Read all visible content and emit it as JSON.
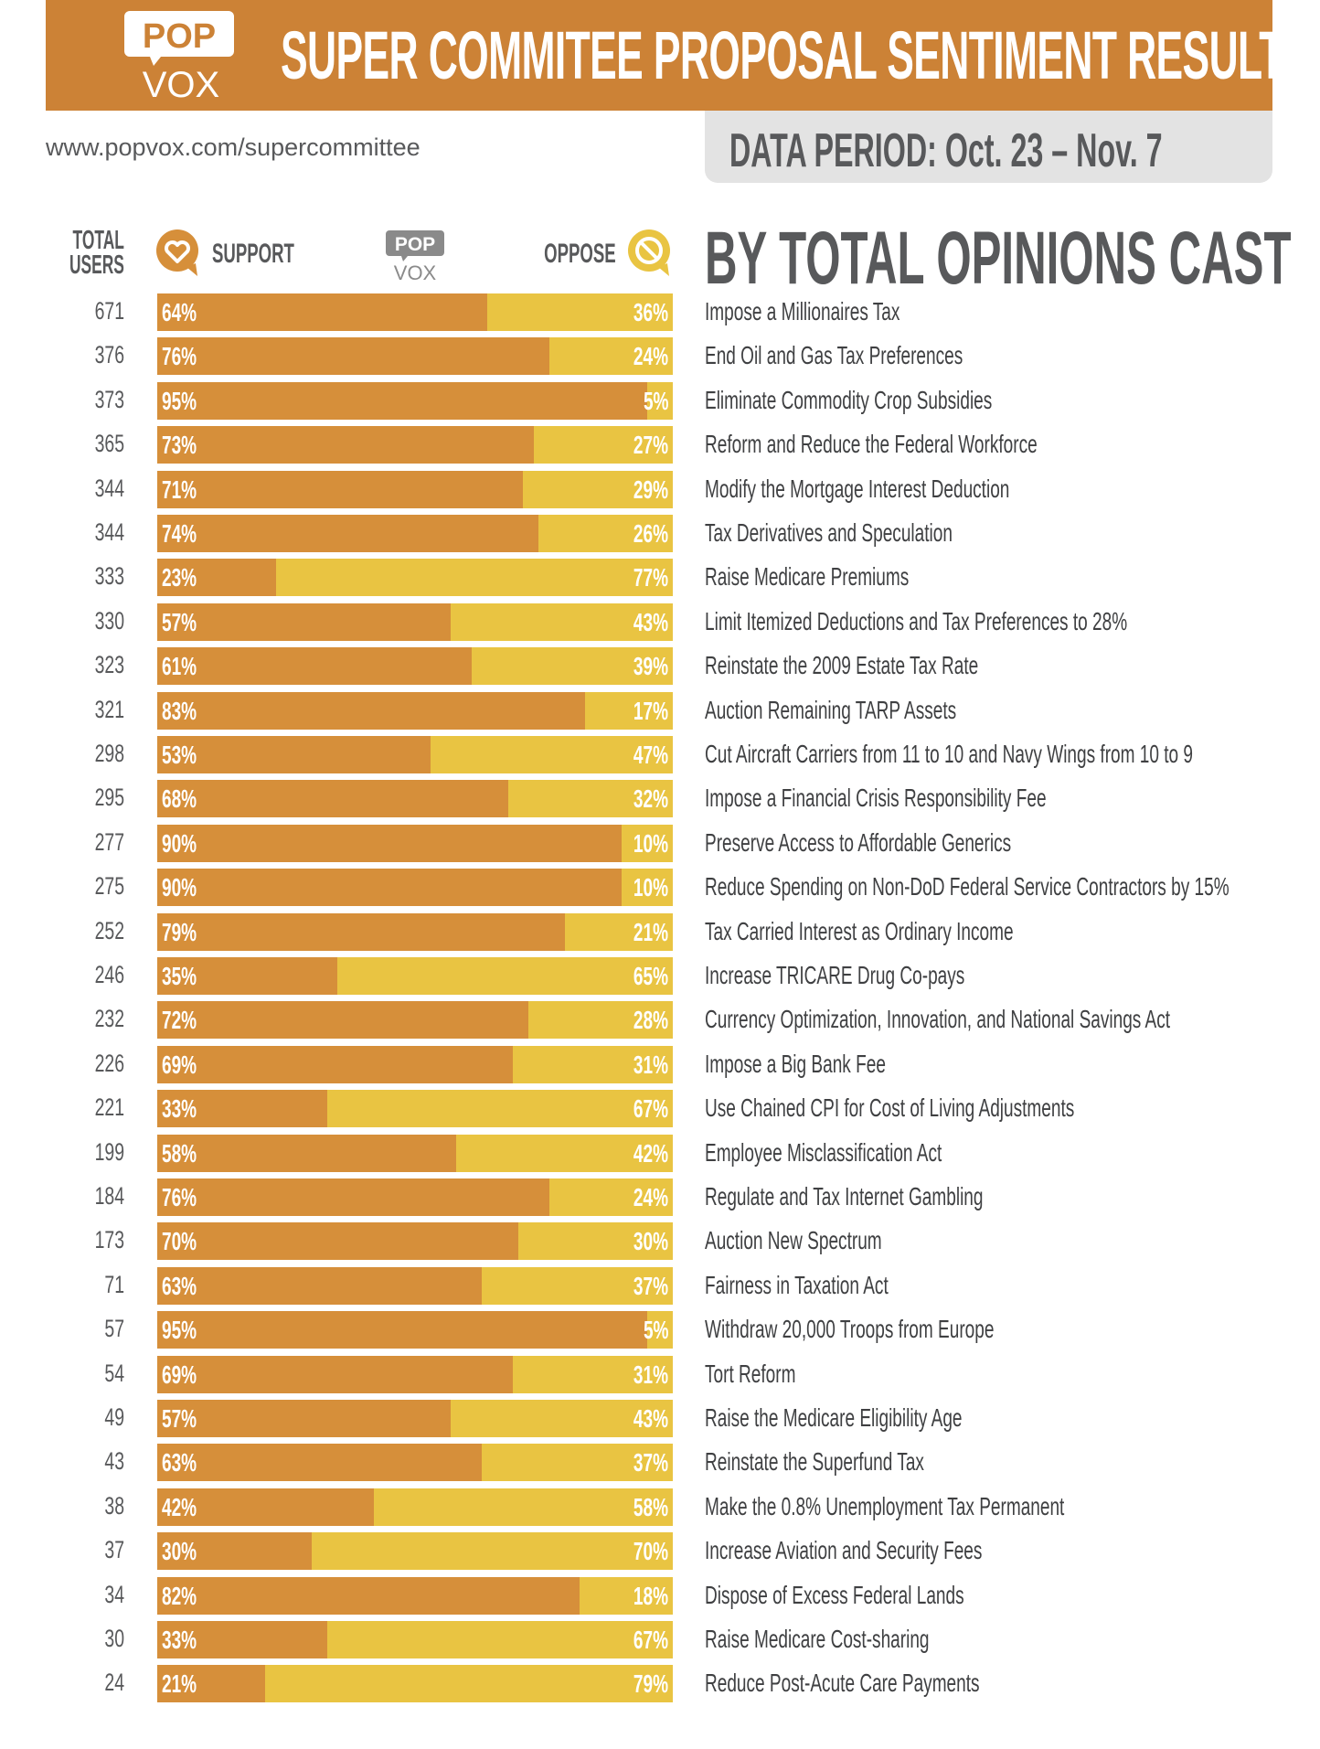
{
  "header": {
    "logo_top": "POP",
    "logo_bottom": "VOX",
    "title": "SUPER COMMITEE PROPOSAL SENTIMENT RESULTS",
    "url": "www.popvox.com/supercommittee",
    "data_period": "DATA PERIOD: Oct. 23 – Nov. 7"
  },
  "colors": {
    "banner": "#cc8236",
    "support": "#d68f3a",
    "oppose": "#e9c442"
  },
  "legend": {
    "total_users_line1": "TOTAL",
    "total_users_line2": "USERS",
    "support": "SUPPORT",
    "oppose": "OPPOSE",
    "support_icon": "heart-bubble-icon",
    "oppose_icon": "prohibited-bubble-icon"
  },
  "chart_data": {
    "type": "bar",
    "stacked": true,
    "orientation": "horizontal",
    "title": "BY TOTAL OPINIONS CAST",
    "series_names": [
      "SUPPORT",
      "OPPOSE"
    ],
    "rows": [
      {
        "users": "671",
        "support": "64%",
        "oppose": "36%",
        "s": 64,
        "label": "Impose a Millionaires Tax"
      },
      {
        "users": "376",
        "support": "76%",
        "oppose": "24%",
        "s": 76,
        "label": "End Oil and Gas Tax Preferences"
      },
      {
        "users": "373",
        "support": "95%",
        "oppose": "5%",
        "s": 95,
        "label": "Eliminate Commodity Crop Subsidies"
      },
      {
        "users": "365",
        "support": "73%",
        "oppose": "27%",
        "s": 73,
        "label": "Reform and Reduce the Federal Workforce"
      },
      {
        "users": "344",
        "support": "71%",
        "oppose": "29%",
        "s": 71,
        "label": "Modify the Mortgage Interest Deduction"
      },
      {
        "users": "344",
        "support": "74%",
        "oppose": "26%",
        "s": 74,
        "label": "Tax Derivatives and Speculation"
      },
      {
        "users": "333",
        "support": "23%",
        "oppose": "77%",
        "s": 23,
        "label": "Raise Medicare Premiums"
      },
      {
        "users": "330",
        "support": "57%",
        "oppose": "43%",
        "s": 57,
        "label": "Limit Itemized Deductions and Tax Preferences to 28%"
      },
      {
        "users": "323",
        "support": "61%",
        "oppose": "39%",
        "s": 61,
        "label": "Reinstate the 2009 Estate Tax Rate"
      },
      {
        "users": "321",
        "support": "83%",
        "oppose": "17%",
        "s": 83,
        "label": "Auction Remaining TARP Assets"
      },
      {
        "users": "298",
        "support": "53%",
        "oppose": "47%",
        "s": 53,
        "label": "Cut Aircraft Carriers from 11 to 10 and Navy Wings from 10 to 9"
      },
      {
        "users": "295",
        "support": "68%",
        "oppose": "32%",
        "s": 68,
        "label": "Impose a Financial Crisis Responsibility Fee"
      },
      {
        "users": "277",
        "support": "90%",
        "oppose": "10%",
        "s": 90,
        "label": "Preserve Access to Affordable Generics"
      },
      {
        "users": "275",
        "support": "90%",
        "oppose": "10%",
        "s": 90,
        "label": "Reduce Spending on Non-DoD Federal Service Contractors by 15%"
      },
      {
        "users": "252",
        "support": "79%",
        "oppose": "21%",
        "s": 79,
        "label": "Tax Carried Interest as Ordinary Income"
      },
      {
        "users": "246",
        "support": "35%",
        "oppose": "65%",
        "s": 35,
        "label": "Increase TRICARE Drug Co-pays"
      },
      {
        "users": "232",
        "support": "72%",
        "oppose": "28%",
        "s": 72,
        "label": "Currency Optimization, Innovation, and National Savings Act"
      },
      {
        "users": "226",
        "support": "69%",
        "oppose": "31%",
        "s": 69,
        "label": "Impose a Big Bank Fee"
      },
      {
        "users": "221",
        "support": "33%",
        "oppose": "67%",
        "s": 33,
        "label": "Use Chained CPI for Cost of Living Adjustments"
      },
      {
        "users": "199",
        "support": "58%",
        "oppose": "42%",
        "s": 58,
        "label": "Employee Misclassification Act"
      },
      {
        "users": "184",
        "support": "76%",
        "oppose": "24%",
        "s": 76,
        "label": "Regulate and Tax Internet Gambling"
      },
      {
        "users": "173",
        "support": "70%",
        "oppose": "30%",
        "s": 70,
        "label": "Auction New Spectrum"
      },
      {
        "users": "71",
        "support": "63%",
        "oppose": "37%",
        "s": 63,
        "label": "Fairness in Taxation Act"
      },
      {
        "users": "57",
        "support": "95%",
        "oppose": "5%",
        "s": 95,
        "label": "Withdraw 20,000 Troops from Europe"
      },
      {
        "users": "54",
        "support": "69%",
        "oppose": "31%",
        "s": 69,
        "label": "Tort Reform"
      },
      {
        "users": "49",
        "support": "57%",
        "oppose": "43%",
        "s": 57,
        "label": "Raise the Medicare Eligibility Age"
      },
      {
        "users": "43",
        "support": "63%",
        "oppose": "37%",
        "s": 63,
        "label": "Reinstate the Superfund Tax"
      },
      {
        "users": "38",
        "support": "42%",
        "oppose": "58%",
        "s": 42,
        "label": "Make the 0.8% Unemployment Tax Permanent"
      },
      {
        "users": "37",
        "support": "30%",
        "oppose": "70%",
        "s": 30,
        "label": "Increase Aviation and Security Fees"
      },
      {
        "users": "34",
        "support": "82%",
        "oppose": "18%",
        "s": 82,
        "label": "Dispose of Excess Federal Lands"
      },
      {
        "users": "30",
        "support": "33%",
        "oppose": "67%",
        "s": 33,
        "label": "Raise Medicare Cost-sharing"
      },
      {
        "users": "24",
        "support": "21%",
        "oppose": "79%",
        "s": 21,
        "label": "Reduce Post-Acute Care Payments"
      }
    ]
  }
}
